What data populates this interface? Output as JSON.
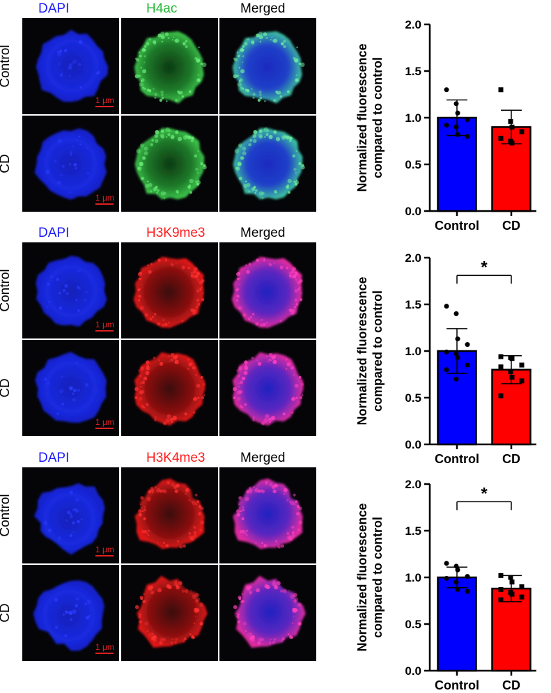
{
  "colors": {
    "blue": "#0000ff",
    "green": "#2eaa3c",
    "red": "#ff0000",
    "black": "#000000",
    "dapi_fill": "#1a22d8",
    "h4ac_fill": "#2fa83a",
    "red_fill": "#d81818"
  },
  "panels": [
    {
      "headers": [
        {
          "text": "DAPI",
          "color": "#1a1aff"
        },
        {
          "text": "H4ac",
          "color": "#22b833"
        },
        {
          "text": "Merged",
          "color": "#000000"
        }
      ],
      "rows": [
        "Control",
        "CD"
      ],
      "scale_bar": "1 μm"
    },
    {
      "headers": [
        {
          "text": "DAPI",
          "color": "#1a1aff"
        },
        {
          "text": "H3K9me3",
          "color": "#ff1a1a"
        },
        {
          "text": "Merged",
          "color": "#000000"
        }
      ],
      "rows": [
        "Control",
        "CD"
      ],
      "scale_bar": "1 μm"
    },
    {
      "headers": [
        {
          "text": "DAPI",
          "color": "#1a1aff"
        },
        {
          "text": "H3K4me3",
          "color": "#ff1a1a"
        },
        {
          "text": "Merged",
          "color": "#000000"
        }
      ],
      "rows": [
        "Control",
        "CD"
      ],
      "scale_bar": "1 μm"
    }
  ],
  "chart_data": [
    {
      "type": "bar",
      "ylabel": "Normalized fluorescence compared to control",
      "ylabel_lines": [
        "Normalized fluorescence",
        "compared to control"
      ],
      "categories": [
        "Control",
        "CD"
      ],
      "values": [
        1.0,
        0.9
      ],
      "errors": [
        0.19,
        0.18
      ],
      "bar_colors": [
        "#0000ff",
        "#ff0000"
      ],
      "ylim": [
        0,
        2.0
      ],
      "yticks": [
        "0.0",
        "0.5",
        "1.0",
        "1.5",
        "2.0"
      ],
      "significance": "",
      "points": [
        [
          1.3,
          1.15,
          1.05,
          0.98,
          0.92,
          0.9,
          0.82,
          0.8
        ],
        [
          1.3,
          0.96,
          0.9,
          0.85,
          0.78,
          0.75,
          0.73
        ]
      ]
    },
    {
      "type": "bar",
      "ylabel": "Normalized fluorescence compared to control",
      "ylabel_lines": [
        "Normalized fluorescence",
        "compared to control"
      ],
      "categories": [
        "Control",
        "CD"
      ],
      "values": [
        1.0,
        0.8
      ],
      "errors": [
        0.24,
        0.15
      ],
      "bar_colors": [
        "#0000ff",
        "#ff0000"
      ],
      "ylim": [
        0,
        2.0
      ],
      "yticks": [
        "0.0",
        "0.5",
        "1.0",
        "1.5",
        "2.0"
      ],
      "significance": "*",
      "points": [
        [
          1.48,
          1.4,
          1.13,
          1.07,
          0.99,
          0.97,
          0.93,
          0.85,
          0.8,
          0.7
        ],
        [
          0.94,
          0.93,
          0.92,
          0.85,
          0.83,
          0.78,
          0.72,
          0.68,
          0.52
        ]
      ]
    },
    {
      "type": "bar",
      "ylabel": "Normalized fluorescence compared to control",
      "ylabel_lines": [
        "Normalized fluorescence",
        "compared to control"
      ],
      "categories": [
        "Control",
        "CD"
      ],
      "values": [
        1.0,
        0.88
      ],
      "errors": [
        0.11,
        0.14
      ],
      "bar_colors": [
        "#0000ff",
        "#ff0000"
      ],
      "ylim": [
        0,
        2.0
      ],
      "yticks": [
        "0.0",
        "0.5",
        "1.0",
        "1.5",
        "2.0"
      ],
      "significance": "*",
      "points": [
        [
          1.15,
          1.12,
          1.08,
          1.01,
          0.99,
          0.95,
          0.87,
          0.85
        ],
        [
          1.02,
          1.0,
          0.95,
          0.9,
          0.87,
          0.84,
          0.82,
          0.79,
          0.76
        ]
      ]
    }
  ]
}
